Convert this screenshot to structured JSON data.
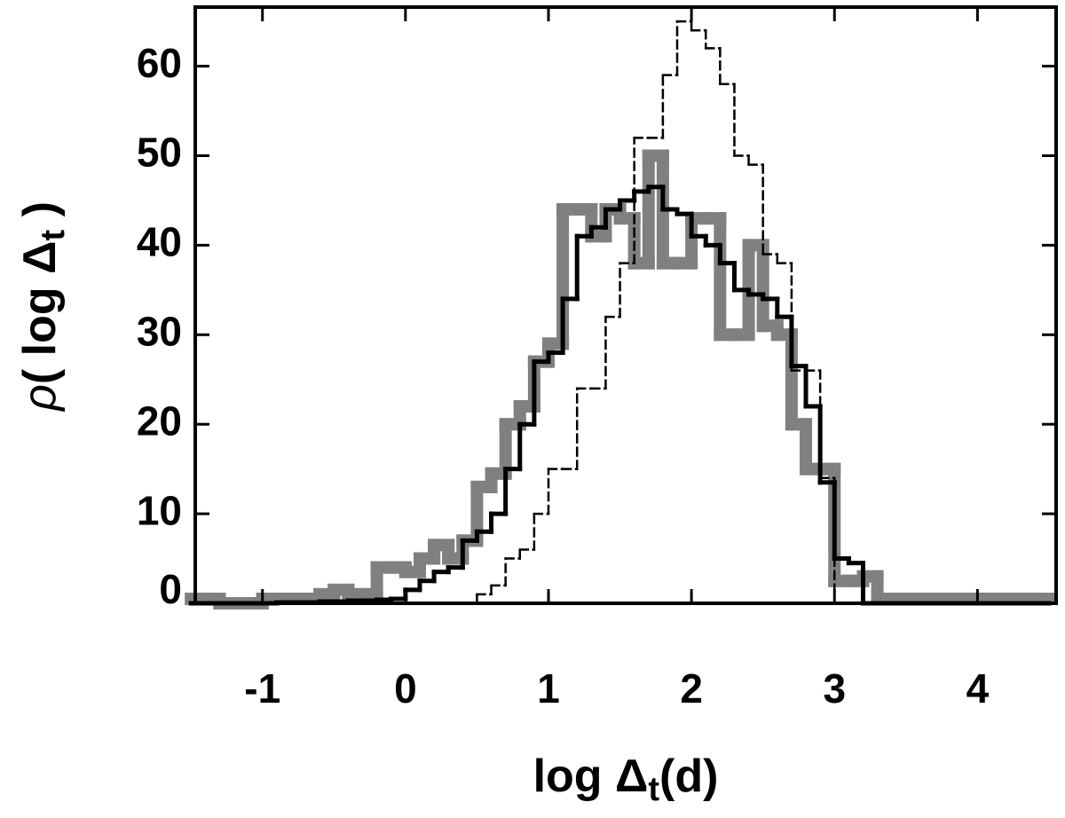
{
  "chart_data": {
    "type": "histogram",
    "x_label": {
      "main": "log Δ",
      "sub": "t",
      "end": "(d)"
    },
    "y_label": {
      "symbol": "ρ",
      "main": "( log Δ",
      "sub": "t",
      "end": " )"
    },
    "bins": [
      -1.5,
      -1.4,
      -1.3,
      -1.2,
      -1.1,
      -1.0,
      -0.9,
      -0.8,
      -0.7,
      -0.6,
      -0.5,
      -0.4,
      -0.3,
      -0.2,
      -0.1,
      0.0,
      0.1,
      0.2,
      0.3,
      0.4,
      0.5,
      0.6,
      0.7,
      0.8,
      0.9,
      1.0,
      1.1,
      1.2,
      1.3,
      1.4,
      1.5,
      1.6,
      1.7,
      1.8,
      1.9,
      2.0,
      2.1,
      2.2,
      2.3,
      2.4,
      2.5,
      2.6,
      2.7,
      2.8,
      2.9,
      3.0,
      3.1,
      3.2,
      3.3,
      3.4,
      3.5,
      3.6,
      3.7,
      3.8,
      3.9,
      4.0,
      4.1,
      4.2,
      4.3,
      4.4,
      4.5
    ],
    "series": [
      {
        "color": "#808080",
        "style": "thick",
        "values": [
          0.5,
          0.5,
          0,
          0,
          0,
          0.5,
          0.5,
          0.5,
          0.5,
          1,
          1.5,
          1,
          1,
          4,
          4,
          3.5,
          5,
          6.5,
          5,
          7,
          13,
          14.5,
          20,
          22,
          27,
          29,
          44,
          44,
          41,
          44,
          43,
          38,
          50,
          38,
          38,
          43,
          43,
          30,
          30,
          40,
          31,
          30,
          20,
          15,
          15,
          2.5,
          2.5,
          3,
          0.5,
          0.5,
          0.5,
          0.5,
          0.5,
          0.5,
          0.5,
          0.5,
          0.5,
          0.5,
          0.5,
          0.5
        ]
      },
      {
        "color": "#000000",
        "style": "dashed",
        "values": [
          0,
          0,
          0,
          0,
          0,
          0,
          0,
          0,
          0,
          0,
          0,
          0,
          0,
          0,
          0,
          0,
          0,
          0,
          0,
          0,
          1,
          2,
          5,
          6,
          10,
          15,
          15,
          24,
          24,
          32,
          38,
          52,
          52,
          59,
          65,
          64,
          62,
          58,
          50,
          49,
          39,
          38,
          26,
          26,
          14,
          0,
          0,
          0,
          0,
          0,
          0,
          0,
          0,
          0,
          0,
          0,
          0,
          0,
          0,
          0
        ]
      },
      {
        "color": "#000000",
        "style": "solid",
        "values": [
          0,
          0,
          0,
          0,
          0,
          0,
          0.1,
          0.1,
          0.1,
          0.2,
          0.2,
          0.3,
          0.3,
          0.4,
          0.5,
          1.5,
          2.5,
          3.5,
          4,
          7,
          8,
          10,
          15,
          20,
          27,
          28,
          34,
          41,
          42,
          44,
          45,
          46,
          46.5,
          44,
          43.5,
          41,
          40,
          38,
          35,
          34.5,
          34,
          32,
          26.5,
          22,
          13.5,
          5,
          4.5,
          0,
          0,
          0,
          0,
          0,
          0,
          0,
          0,
          0,
          0,
          0,
          0,
          0
        ]
      }
    ],
    "xlim": [
      -1.47,
      4.55
    ],
    "xticks": [
      -1,
      0,
      1,
      2,
      3,
      4
    ],
    "ylim": [
      0,
      66.6
    ],
    "yticks": [
      0,
      10,
      20,
      30,
      40,
      50,
      60
    ]
  }
}
